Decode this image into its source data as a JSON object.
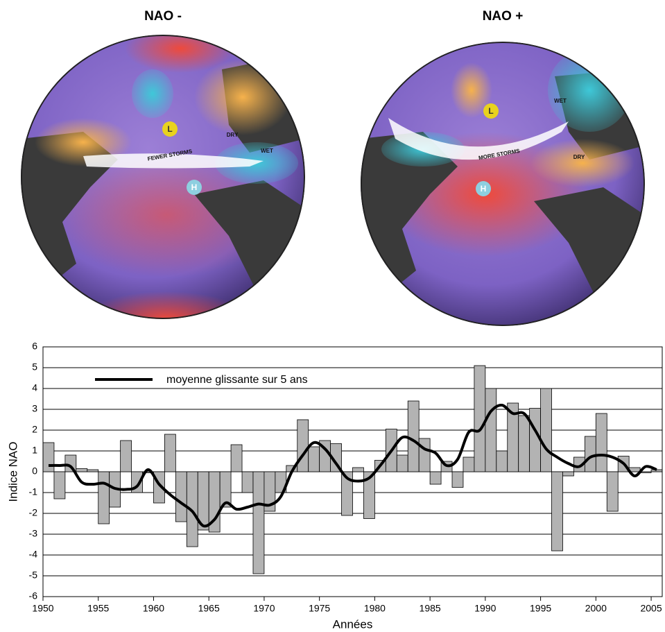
{
  "illustration": {
    "panels": [
      {
        "title": "NAO -",
        "labels": [
          "FEWER STORMS",
          "DRY",
          "WET",
          "L",
          "H"
        ]
      },
      {
        "title": "NAO +",
        "labels": [
          "MORE STORMS",
          "WET",
          "DRY",
          "L",
          "H"
        ]
      }
    ]
  },
  "chart_data": {
    "type": "bar",
    "x": [
      1950,
      1951,
      1952,
      1953,
      1954,
      1955,
      1956,
      1957,
      1958,
      1959,
      1960,
      1961,
      1962,
      1963,
      1964,
      1965,
      1966,
      1967,
      1968,
      1969,
      1970,
      1971,
      1972,
      1973,
      1974,
      1975,
      1976,
      1977,
      1978,
      1979,
      1980,
      1981,
      1982,
      1983,
      1984,
      1985,
      1986,
      1987,
      1988,
      1989,
      1990,
      1991,
      1992,
      1993,
      1994,
      1995,
      1996,
      1997,
      1998,
      1999,
      2000,
      2001,
      2002,
      2003,
      2004,
      2005
    ],
    "series": [
      {
        "type": "bar",
        "color": "#b3b3b3",
        "values": [
          1.4,
          -1.3,
          0.8,
          0.15,
          0.1,
          -2.5,
          -1.7,
          1.5,
          -1.0,
          -0.05,
          -1.5,
          1.8,
          -2.4,
          -3.6,
          -2.8,
          -2.9,
          -1.7,
          1.3,
          -1.0,
          -4.9,
          -1.9,
          -1.0,
          0.3,
          2.5,
          1.2,
          1.5,
          1.35,
          -2.1,
          0.2,
          -2.25,
          0.55,
          2.05,
          0.8,
          3.4,
          1.6,
          -0.6,
          0.5,
          -0.75,
          0.7,
          5.1,
          4.0,
          1.0,
          3.3,
          2.7,
          3.05,
          4.0,
          -3.8,
          -0.2,
          0.7,
          1.7,
          2.8,
          -1.9,
          0.75,
          0.2,
          -0.05,
          0.1
        ]
      },
      {
        "type": "line",
        "name": "moyenne glissante sur 5 ans",
        "color": "#000000",
        "values": [
          0.3,
          0.3,
          0.25,
          -0.5,
          -0.6,
          -0.55,
          -0.8,
          -0.85,
          -0.7,
          0.1,
          -0.6,
          -1.1,
          -1.5,
          -1.9,
          -2.6,
          -2.3,
          -1.5,
          -1.8,
          -1.7,
          -1.55,
          -1.6,
          -1.2,
          0.0,
          0.8,
          1.4,
          1.1,
          0.4,
          -0.3,
          -0.45,
          -0.3,
          0.3,
          1.0,
          1.65,
          1.5,
          1.1,
          0.9,
          0.3,
          0.6,
          1.9,
          2.0,
          2.9,
          3.2,
          2.8,
          2.8,
          2.0,
          1.1,
          0.7,
          0.4,
          0.25,
          0.7,
          0.8,
          0.7,
          0.4,
          -0.2,
          0.25,
          0.1
        ]
      }
    ],
    "xlim": [
      1950,
      2006
    ],
    "xticks": [
      1950,
      1955,
      1960,
      1965,
      1970,
      1975,
      1980,
      1985,
      1990,
      1995,
      2000,
      2005
    ],
    "ylim": [
      -6,
      6
    ],
    "yticks": [
      -6,
      -5,
      -4,
      -3,
      -2,
      -1,
      0,
      1,
      2,
      3,
      4,
      5,
      6
    ],
    "x_label": "Années",
    "y_label": "Indice NAO",
    "grid": true,
    "legend": "top-left"
  }
}
